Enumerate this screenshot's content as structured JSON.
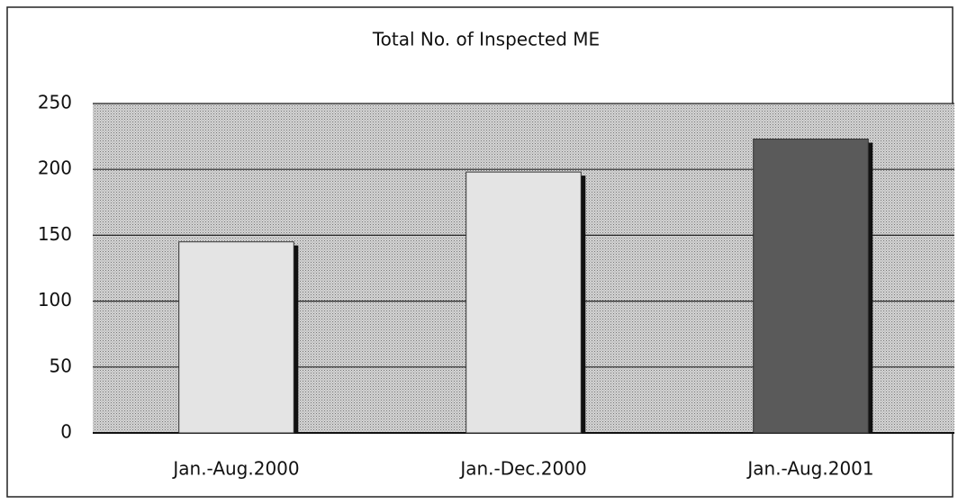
{
  "chart_data": {
    "type": "bar",
    "title": "Total No. of Inspected ME",
    "categories": [
      "Jan.-Aug.2000",
      "Jan.-Dec.2000",
      "Jan.-Aug.2001"
    ],
    "values": [
      145,
      198,
      223
    ],
    "colors": [
      "#e4e4e4",
      "#e4e4e4",
      "#5a5a5a"
    ],
    "ylim": [
      0,
      250
    ],
    "yticks": [
      0,
      50,
      100,
      150,
      200,
      250
    ],
    "grid": true
  }
}
